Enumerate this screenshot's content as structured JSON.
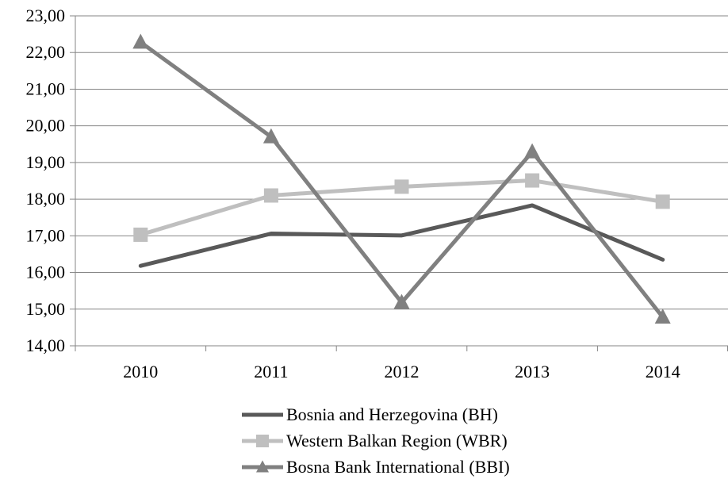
{
  "chart_data": {
    "type": "line",
    "title": "",
    "xlabel": "",
    "ylabel": "",
    "categories": [
      "2010",
      "2011",
      "2012",
      "2013",
      "2014"
    ],
    "ylim": [
      14,
      23
    ],
    "y_ticks": [
      "14,00",
      "15,00",
      "16,00",
      "17,00",
      "18,00",
      "19,00",
      "20,00",
      "21,00",
      "22,00",
      "23,00"
    ],
    "grid": true,
    "legend_position": "bottom",
    "series": [
      {
        "name": "Bosnia and Herzegovina (BH)",
        "values": [
          16.18,
          17.06,
          17.01,
          17.83,
          16.35
        ],
        "color": "#595959",
        "marker": "none"
      },
      {
        "name": "Western Balkan Region (WBR)",
        "values": [
          17.03,
          18.1,
          18.34,
          18.51,
          17.93
        ],
        "color": "#bfbfbf",
        "marker": "square"
      },
      {
        "name": "Bosna Bank International (BBI)",
        "values": [
          22.28,
          19.7,
          15.18,
          19.29,
          14.78
        ],
        "color": "#808080",
        "marker": "triangle"
      }
    ]
  }
}
